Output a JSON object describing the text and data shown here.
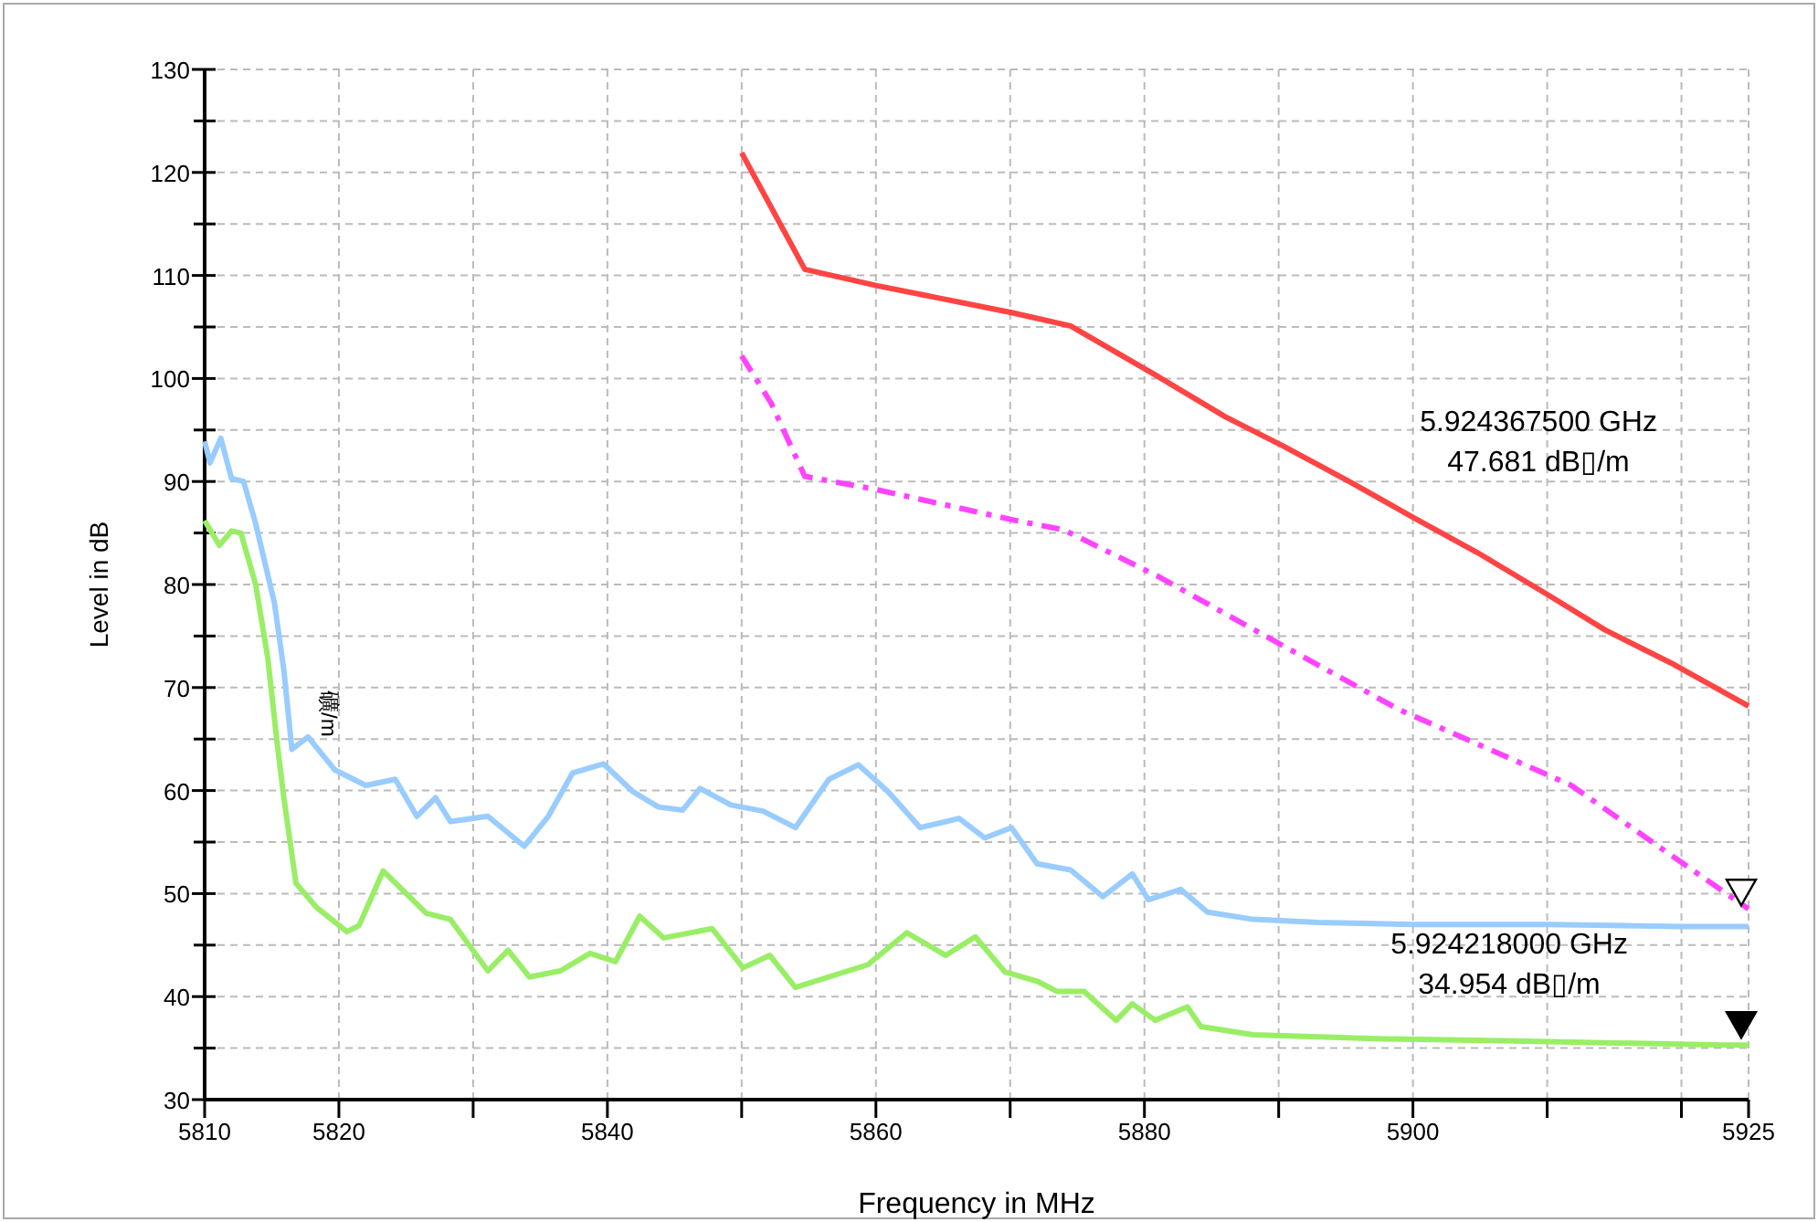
{
  "chart_data": {
    "type": "line",
    "xlabel": "Frequency in MHz",
    "ylabel": "Level in dB",
    "xlim": [
      5810,
      5925
    ],
    "ylim": [
      30,
      130
    ],
    "xticks": [
      5810,
      5820,
      {
        "value": 5830,
        "label": null
      },
      5840,
      {
        "value": 5850,
        "label": null
      },
      5860,
      {
        "value": 5870,
        "label": null
      },
      5880,
      {
        "value": 5890,
        "label": null
      },
      5900,
      {
        "value": 5910,
        "label": null
      },
      {
        "value": 5920,
        "label": null
      },
      5925
    ],
    "yticks": [
      30,
      {
        "value": 35,
        "label": null
      },
      40,
      {
        "value": 45,
        "label": null
      },
      50,
      {
        "value": 55,
        "label": null
      },
      60,
      {
        "value": 65,
        "label": null
      },
      70,
      {
        "value": 75,
        "label": null
      },
      80,
      {
        "value": 85,
        "label": null
      },
      90,
      {
        "value": 95,
        "label": null
      },
      100,
      {
        "value": 105,
        "label": null
      },
      110,
      {
        "value": 115,
        "label": null
      },
      120,
      {
        "value": 125,
        "label": null
      },
      130
    ],
    "grid": true,
    "marker": "none",
    "series": [
      {
        "color": "#99ccff",
        "line_style": "solid",
        "x": [
          5810,
          5810.4,
          5811.2,
          5812,
          5812.9,
          5813.8,
          5815.2,
          5815.9,
          5816.5,
          5817.7,
          5819.7,
          5822,
          5824.2,
          5825.8,
          5827.2,
          5828.3,
          5831.1,
          5833.8,
          5835.6,
          5837.4,
          5839.7,
          5841.9,
          5843.8,
          5845.6,
          5846.9,
          5849.2,
          5851.6,
          5854,
          5856.5,
          5858.7,
          5860.9,
          5863.3,
          5866.2,
          5868.1,
          5870.1,
          5872,
          5874.5,
          5876.9,
          5879.1,
          5880.3,
          5882.7,
          5884.7,
          5888.1,
          5892.9,
          5900,
          5910,
          5920,
          5925
        ],
        "values": [
          93.9,
          91.8,
          94.2,
          90.3,
          90,
          85.9,
          78.2,
          71.7,
          64,
          65.2,
          62,
          60.5,
          61.1,
          57.5,
          59.3,
          57,
          57.5,
          54.6,
          57.5,
          61.7,
          62.6,
          59.9,
          58.4,
          58.1,
          60.2,
          58.6,
          58,
          56.4,
          61.1,
          62.5,
          59.9,
          56.4,
          57.3,
          55.4,
          56.4,
          52.9,
          52.3,
          49.7,
          51.9,
          49.4,
          50.4,
          48.2,
          47.5,
          47.2,
          47,
          47,
          46.8,
          46.8
        ]
      },
      {
        "color": "#99ee66",
        "line_style": "solid",
        "x": [
          5810,
          5811.1,
          5812,
          5812.7,
          5813.8,
          5814.7,
          5815.4,
          5815.9,
          5816.8,
          5818.3,
          5820.6,
          5821.5,
          5823.3,
          5824.7,
          5826.5,
          5828.3,
          5831.1,
          5832.6,
          5834.2,
          5836.5,
          5838.7,
          5840.6,
          5842.4,
          5844.2,
          5847.8,
          5850.1,
          5852.1,
          5854,
          5859.4,
          5862.3,
          5865.2,
          5867.4,
          5869.6,
          5872,
          5873.5,
          5875.5,
          5877.9,
          5879.1,
          5880.8,
          5883.2,
          5884.2,
          5888.1,
          5897.8,
          5907.5,
          5923.1,
          5925
        ],
        "values": [
          86.2,
          83.8,
          85.2,
          85,
          80,
          72.9,
          64.6,
          59.3,
          51,
          48.7,
          46.3,
          46.9,
          52.2,
          50.4,
          48.1,
          47.5,
          42.5,
          44.5,
          41.9,
          42.5,
          44.2,
          43.4,
          47.8,
          45.7,
          46.6,
          42.8,
          44,
          40.9,
          43.1,
          46.2,
          44,
          45.8,
          42.4,
          41.5,
          40.5,
          40.5,
          37.7,
          39.3,
          37.7,
          39,
          37.1,
          36.3,
          35.9,
          35.7,
          35.3,
          35.3
        ]
      },
      {
        "color": "#ff4444",
        "line_style": "solid",
        "x": [
          5850,
          5854.7,
          5860.1,
          5870.1,
          5874.5,
          5881,
          5886,
          5890.4,
          5895.4,
          5899.9,
          5904.8,
          5909.8,
          5914.3,
          5919.2,
          5925
        ],
        "values": [
          121.9,
          110.6,
          109,
          106.4,
          105.1,
          100.2,
          96.3,
          93.4,
          89.9,
          86.6,
          83.1,
          79.2,
          75.6,
          72.4,
          68.2
        ]
      },
      {
        "color": "#ff44ff",
        "line_style": "dashed",
        "x": [
          5850,
          5852.2,
          5854.7,
          5860.1,
          5870.1,
          5874,
          5881,
          5890.4,
          5898.9,
          5911.8,
          5918.6,
          5925
        ],
        "values": [
          102.2,
          97.6,
          90.5,
          89.2,
          86.3,
          85.3,
          80.8,
          74,
          67.9,
          60.5,
          54.3,
          48.5
        ]
      }
    ],
    "annotations": [
      "5.924367500 GHz\n47.681 dB▯/m",
      "5.924218000 GHz\n34.954 dB▯/m",
      "礦/m"
    ]
  }
}
